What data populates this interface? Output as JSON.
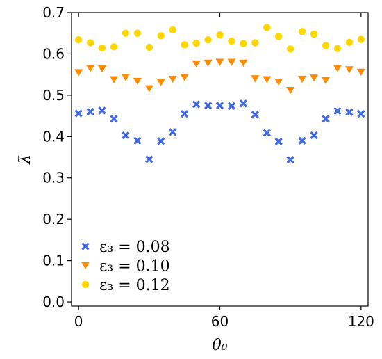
{
  "chart_data": {
    "type": "scatter",
    "title": "",
    "xlabel": "θ₀",
    "ylabel": "λ̄",
    "xlim": [
      -3,
      123
    ],
    "ylim": [
      -0.01,
      0.7
    ],
    "xticks": [
      0,
      60,
      120
    ],
    "yticks": [
      0.0,
      0.1,
      0.2,
      0.3,
      0.4,
      0.5,
      0.6,
      0.7
    ],
    "xtick_labels": [
      "0",
      "60",
      "120"
    ],
    "ytick_labels": [
      "0.0",
      "0.1",
      "0.2",
      "0.3",
      "0.4",
      "0.5",
      "0.6",
      "0.7"
    ],
    "grid": false,
    "legend_position": "lower-left",
    "x": [
      0,
      5,
      10,
      15,
      20,
      25,
      30,
      35,
      40,
      45,
      50,
      55,
      60,
      65,
      70,
      75,
      80,
      85,
      90,
      95,
      100,
      105,
      110,
      115,
      120
    ],
    "series": [
      {
        "name": "ε₃ = 0.08",
        "marker": "x",
        "color": "#4169e1",
        "values": [
          0.456,
          0.46,
          0.463,
          0.443,
          0.403,
          0.39,
          0.345,
          0.389,
          0.411,
          0.455,
          0.478,
          0.475,
          0.475,
          0.474,
          0.48,
          0.453,
          0.409,
          0.388,
          0.344,
          0.39,
          0.403,
          0.443,
          0.462,
          0.459,
          0.455
        ]
      },
      {
        "name": "ε₃ = 0.10",
        "marker": "triangle-down",
        "color": "#ff8c00",
        "values": [
          0.555,
          0.565,
          0.564,
          0.538,
          0.543,
          0.534,
          0.516,
          0.531,
          0.539,
          0.543,
          0.576,
          0.578,
          0.58,
          0.58,
          0.578,
          0.54,
          0.538,
          0.532,
          0.512,
          0.539,
          0.542,
          0.536,
          0.565,
          0.562,
          0.556
        ]
      },
      {
        "name": "ε₃ = 0.12",
        "marker": "circle",
        "color": "#ffd700",
        "values": [
          0.634,
          0.627,
          0.614,
          0.617,
          0.65,
          0.65,
          0.616,
          0.644,
          0.658,
          0.622,
          0.626,
          0.634,
          0.646,
          0.631,
          0.625,
          0.627,
          0.664,
          0.642,
          0.612,
          0.654,
          0.648,
          0.62,
          0.613,
          0.628,
          0.635
        ]
      }
    ]
  }
}
